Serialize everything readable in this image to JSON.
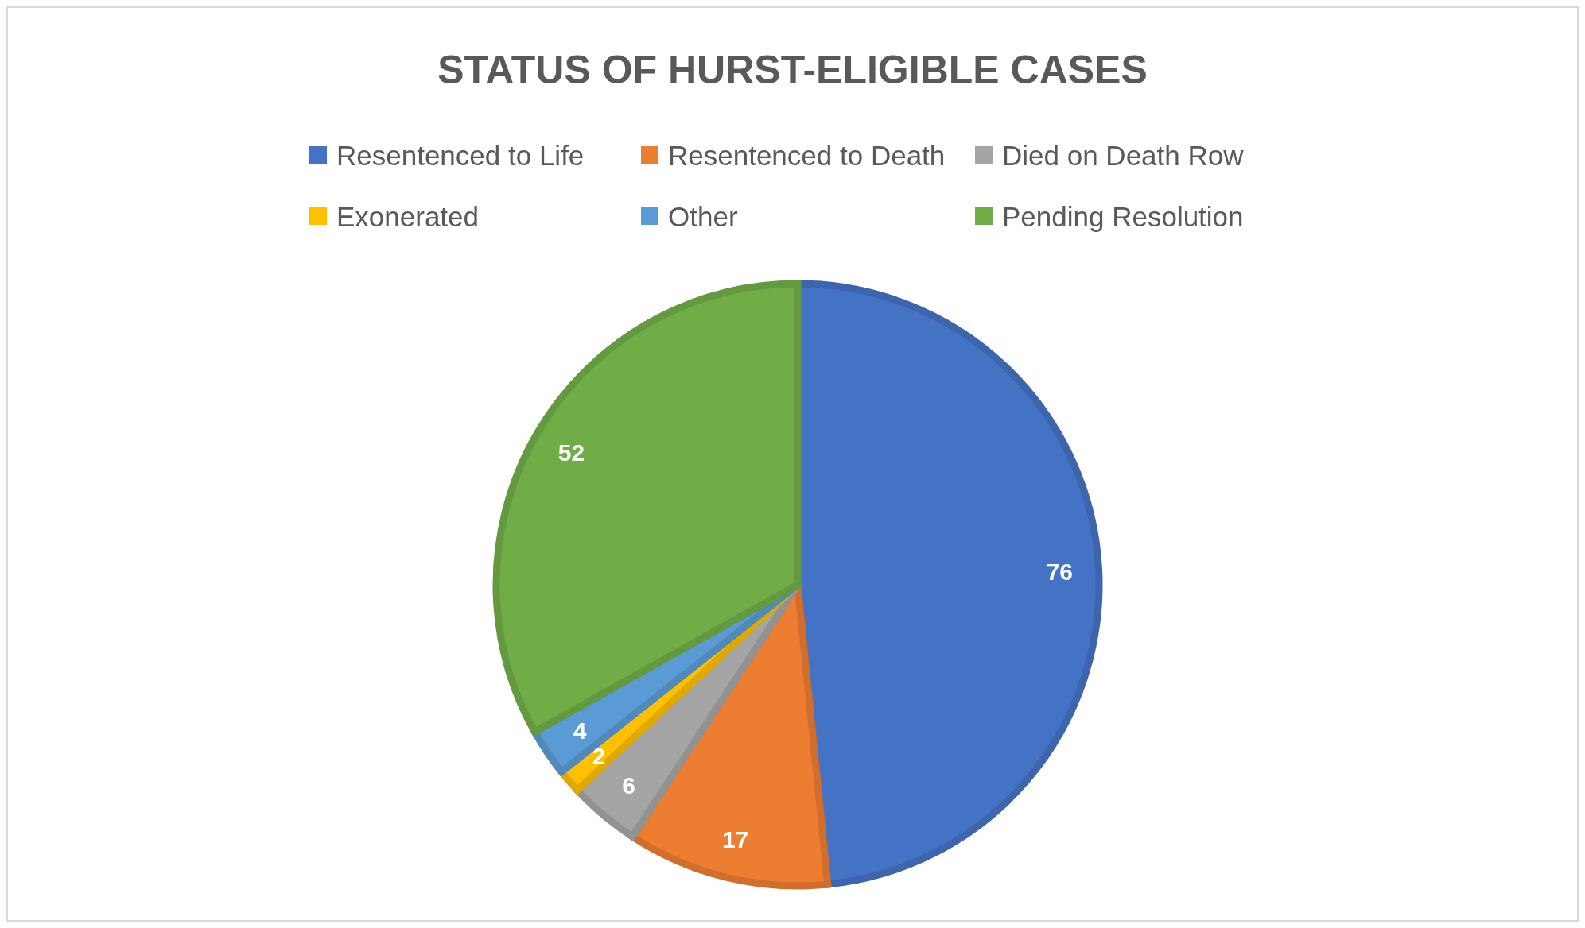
{
  "chart_data": {
    "type": "pie",
    "title": "STATUS OF HURST-ELIGIBLE CASES",
    "categories": [
      "Resentenced to Life",
      "Resentenced to Death",
      "Died on Death Row",
      "Exonerated",
      "Other",
      "Pending Resolution"
    ],
    "values": [
      76,
      17,
      6,
      2,
      4,
      52
    ],
    "colors": [
      "#4472c4",
      "#ed7d31",
      "#a5a5a5",
      "#ffc000",
      "#5b9bd5",
      "#70ad47"
    ],
    "data_labels": true,
    "legend": "top"
  }
}
